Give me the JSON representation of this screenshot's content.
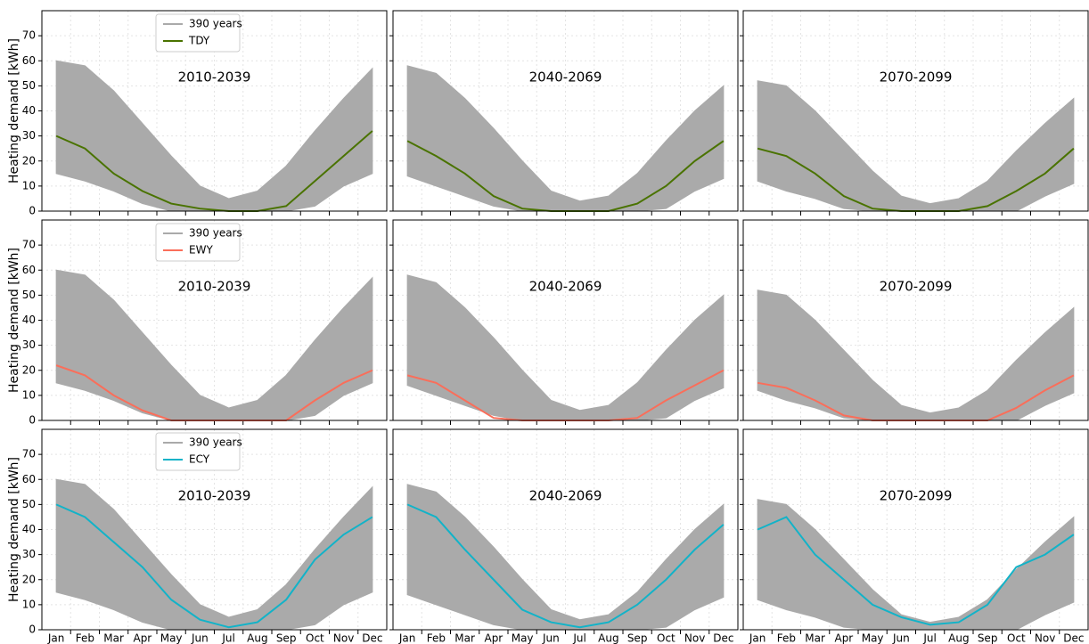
{
  "chart_data": [
    {
      "type": "line",
      "title": "2010-2039",
      "ylabel": "Heating demand [kWh]",
      "ylim": [
        0,
        80
      ],
      "yticks": [
        0,
        10,
        20,
        30,
        40,
        50,
        60,
        70
      ],
      "grid": true,
      "series": [
        {
          "name": "390 years",
          "color": "#aaaaaa",
          "upper": [
            60,
            58,
            48,
            35,
            22,
            10,
            5,
            8,
            18,
            32,
            45,
            57
          ],
          "lower": [
            15,
            12,
            8,
            3,
            0,
            0,
            0,
            0,
            0,
            2,
            10,
            15
          ]
        },
        {
          "name": "TDY",
          "color": "#4a7300",
          "values": [
            30,
            25,
            15,
            8,
            3,
            1,
            0,
            0,
            2,
            12,
            22,
            32
          ]
        }
      ]
    },
    {
      "type": "line",
      "title": "2040-2069",
      "ylim": [
        0,
        80
      ],
      "grid": true,
      "series": [
        {
          "color": "#aaaaaa",
          "upper": [
            58,
            55,
            45,
            33,
            20,
            8,
            4,
            6,
            15,
            28,
            40,
            50
          ],
          "lower": [
            14,
            10,
            6,
            2,
            0,
            0,
            0,
            0,
            0,
            1,
            8,
            13
          ]
        },
        {
          "color": "#4a7300",
          "values": [
            28,
            22,
            15,
            6,
            1,
            0,
            0,
            0,
            3,
            10,
            20,
            28
          ]
        }
      ]
    },
    {
      "type": "line",
      "title": "2070-2099",
      "ylim": [
        0,
        80
      ],
      "grid": true,
      "series": [
        {
          "color": "#aaaaaa",
          "upper": [
            52,
            50,
            40,
            28,
            16,
            6,
            3,
            5,
            12,
            24,
            35,
            45
          ],
          "lower": [
            12,
            8,
            5,
            1,
            0,
            0,
            0,
            0,
            0,
            0,
            6,
            11
          ]
        },
        {
          "color": "#4a7300",
          "values": [
            25,
            22,
            15,
            6,
            1,
            0,
            0,
            0,
            2,
            8,
            15,
            25
          ]
        }
      ]
    },
    {
      "type": "line",
      "title": "2010-2039",
      "ylabel": "Heating demand [kWh]",
      "ylim": [
        0,
        80
      ],
      "yticks": [
        0,
        10,
        20,
        30,
        40,
        50,
        60,
        70
      ],
      "grid": true,
      "series": [
        {
          "name": "390 years",
          "color": "#aaaaaa",
          "upper": [
            60,
            58,
            48,
            35,
            22,
            10,
            5,
            8,
            18,
            32,
            45,
            57
          ],
          "lower": [
            15,
            12,
            8,
            3,
            0,
            0,
            0,
            0,
            0,
            2,
            10,
            15
          ]
        },
        {
          "name": "EWY",
          "color": "#fa6e5a",
          "values": [
            22,
            18,
            10,
            4,
            0,
            0,
            0,
            0,
            0,
            8,
            15,
            20
          ]
        }
      ]
    },
    {
      "type": "line",
      "title": "2040-2069",
      "ylim": [
        0,
        80
      ],
      "grid": true,
      "series": [
        {
          "color": "#aaaaaa",
          "upper": [
            58,
            55,
            45,
            33,
            20,
            8,
            4,
            6,
            15,
            28,
            40,
            50
          ],
          "lower": [
            14,
            10,
            6,
            2,
            0,
            0,
            0,
            0,
            0,
            1,
            8,
            13
          ]
        },
        {
          "color": "#fa6e5a",
          "values": [
            18,
            15,
            8,
            1,
            0,
            0,
            0,
            0,
            1,
            8,
            14,
            20
          ]
        }
      ]
    },
    {
      "type": "line",
      "title": "2070-2099",
      "ylim": [
        0,
        80
      ],
      "grid": true,
      "series": [
        {
          "color": "#aaaaaa",
          "upper": [
            52,
            50,
            40,
            28,
            16,
            6,
            3,
            5,
            12,
            24,
            35,
            45
          ],
          "lower": [
            12,
            8,
            5,
            1,
            0,
            0,
            0,
            0,
            0,
            0,
            6,
            11
          ]
        },
        {
          "color": "#fa6e5a",
          "values": [
            15,
            13,
            8,
            2,
            0,
            0,
            0,
            0,
            0,
            5,
            12,
            18
          ]
        }
      ]
    },
    {
      "type": "line",
      "title": "2010-2039",
      "ylabel": "Heating demand [kWh]",
      "ylim": [
        0,
        80
      ],
      "yticks": [
        0,
        10,
        20,
        30,
        40,
        50,
        60,
        70
      ],
      "grid": true,
      "categories": [
        "Jan",
        "Feb",
        "Mar",
        "Apr",
        "May",
        "Jun",
        "Jul",
        "Aug",
        "Sep",
        "Oct",
        "Nov",
        "Dec"
      ],
      "series": [
        {
          "name": "390 years",
          "color": "#aaaaaa",
          "upper": [
            60,
            58,
            48,
            35,
            22,
            10,
            5,
            8,
            18,
            32,
            45,
            57
          ],
          "lower": [
            15,
            12,
            8,
            3,
            0,
            0,
            0,
            0,
            0,
            2,
            10,
            15
          ]
        },
        {
          "name": "ECY",
          "color": "#12b3c8",
          "values": [
            50,
            45,
            35,
            25,
            12,
            4,
            1,
            3,
            12,
            28,
            38,
            45
          ]
        }
      ]
    },
    {
      "type": "line",
      "title": "2040-2069",
      "ylim": [
        0,
        80
      ],
      "grid": true,
      "categories": [
        "Jan",
        "Feb",
        "Mar",
        "Apr",
        "May",
        "Jun",
        "Jul",
        "Aug",
        "Sep",
        "Oct",
        "Nov",
        "Dec"
      ],
      "series": [
        {
          "color": "#aaaaaa",
          "upper": [
            58,
            55,
            45,
            33,
            20,
            8,
            4,
            6,
            15,
            28,
            40,
            50
          ],
          "lower": [
            14,
            10,
            6,
            2,
            0,
            0,
            0,
            0,
            0,
            1,
            8,
            13
          ]
        },
        {
          "color": "#12b3c8",
          "values": [
            50,
            45,
            32,
            20,
            8,
            3,
            1,
            3,
            10,
            20,
            32,
            42
          ]
        }
      ]
    },
    {
      "type": "line",
      "title": "2070-2099",
      "ylim": [
        0,
        80
      ],
      "grid": true,
      "categories": [
        "Jan",
        "Feb",
        "Mar",
        "Apr",
        "May",
        "Jun",
        "Jul",
        "Aug",
        "Sep",
        "Oct",
        "Nov",
        "Dec"
      ],
      "series": [
        {
          "color": "#aaaaaa",
          "upper": [
            52,
            50,
            40,
            28,
            16,
            6,
            3,
            5,
            12,
            24,
            35,
            45
          ],
          "lower": [
            12,
            8,
            5,
            1,
            0,
            0,
            0,
            0,
            0,
            0,
            6,
            11
          ]
        },
        {
          "color": "#12b3c8",
          "values": [
            40,
            45,
            30,
            20,
            10,
            5,
            2,
            3,
            10,
            25,
            30,
            38
          ]
        }
      ]
    }
  ]
}
